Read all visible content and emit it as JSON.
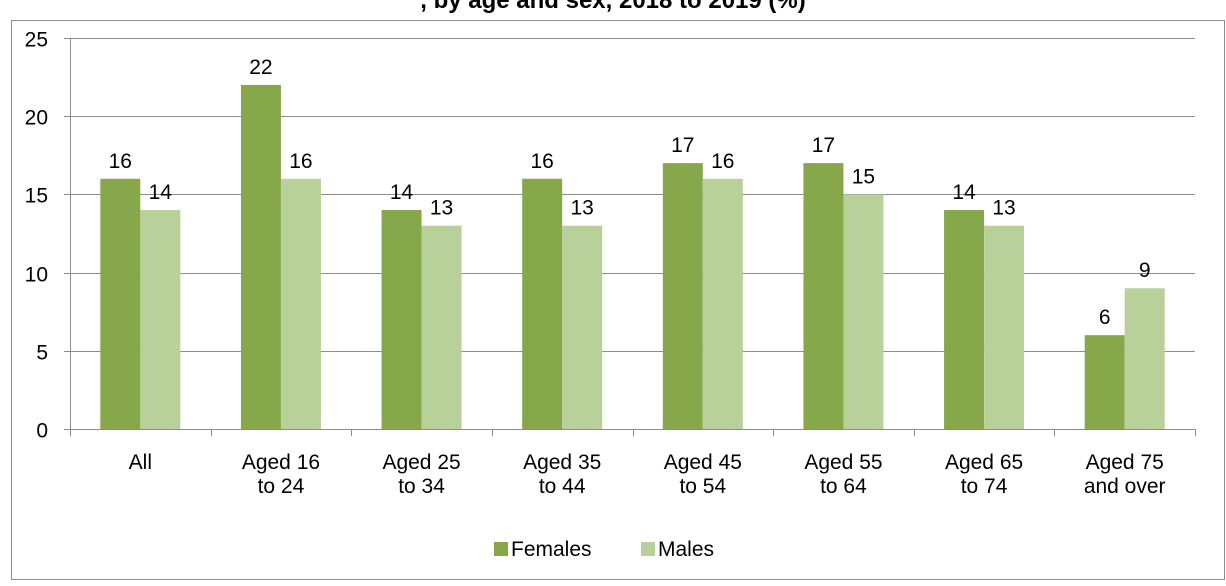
{
  "chart_data": {
    "type": "bar",
    "title": ", by age and sex, 2018 to 2019 (%)",
    "xlabel": "",
    "ylabel": "",
    "ylim": [
      0,
      25
    ],
    "yticks": [
      "0",
      "5",
      "10",
      "15",
      "20",
      "25"
    ],
    "grid": true,
    "legend_position": "bottom",
    "categories": [
      [
        "All"
      ],
      [
        "Aged 16",
        "to 24"
      ],
      [
        "Aged 25",
        "to 34"
      ],
      [
        "Aged 35",
        "to 44"
      ],
      [
        "Aged 45",
        "to 54"
      ],
      [
        "Aged 55",
        "to 64"
      ],
      [
        "Aged 65",
        "to 74"
      ],
      [
        "Aged 75",
        "and over"
      ]
    ],
    "series": [
      {
        "name": "Females",
        "color": "#86a84a",
        "values": [
          16,
          22,
          14,
          16,
          17,
          17,
          14,
          6
        ]
      },
      {
        "name": "Males",
        "color": "#b8d09a",
        "values": [
          14,
          16,
          13,
          13,
          16,
          15,
          13,
          9
        ]
      }
    ]
  }
}
